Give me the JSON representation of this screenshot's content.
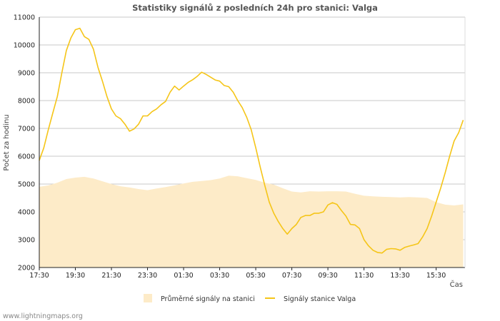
{
  "chart_data": {
    "type": "line",
    "title": "Statistiky signálů z posledních 24h pro stanici: Valga",
    "xlabel": "Čas",
    "ylabel": "Počet za hodinu",
    "ylim": [
      2000,
      11000
    ],
    "yticks": [
      2000,
      3000,
      4000,
      5000,
      6000,
      7000,
      8000,
      9000,
      10000,
      11000
    ],
    "x_tick_labels": [
      "17:30",
      "19:30",
      "21:30",
      "23:30",
      "01:30",
      "03:30",
      "05:30",
      "07:30",
      "09:30",
      "11:30",
      "13:30",
      "15:30"
    ],
    "x_tick_hours": [
      0,
      2,
      4,
      6,
      8,
      10,
      12,
      14,
      16,
      18,
      20,
      22
    ],
    "x_range_hours": [
      0,
      23.6
    ],
    "grid": true,
    "legend_position": "bottom",
    "series": [
      {
        "name": "Průměrné signály na stanici",
        "kind": "area",
        "color": "#fdebc8",
        "x": [
          0,
          0.5,
          1,
          1.5,
          2,
          2.5,
          3,
          3.5,
          4,
          4.5,
          5,
          5.5,
          6,
          6.5,
          7,
          7.5,
          8,
          8.5,
          9,
          9.5,
          10,
          10.5,
          11,
          11.5,
          12,
          12.5,
          13,
          13.5,
          14,
          14.5,
          15,
          15.5,
          16,
          16.5,
          17,
          17.5,
          18,
          18.5,
          19,
          19.5,
          20,
          20.5,
          21,
          21.5,
          22,
          22.5,
          23,
          23.5
        ],
        "values": [
          4900,
          4950,
          5050,
          5180,
          5230,
          5260,
          5200,
          5100,
          5000,
          4920,
          4880,
          4820,
          4780,
          4840,
          4890,
          4950,
          5020,
          5080,
          5110,
          5140,
          5200,
          5300,
          5280,
          5210,
          5150,
          5050,
          4980,
          4850,
          4730,
          4700,
          4740,
          4730,
          4740,
          4740,
          4730,
          4650,
          4580,
          4560,
          4540,
          4530,
          4520,
          4530,
          4520,
          4500,
          4350,
          4260,
          4230,
          4270
        ]
      },
      {
        "name": "Signály stanice Valga",
        "kind": "line",
        "color": "#f5c518",
        "x": [
          0,
          0.25,
          0.5,
          0.75,
          1,
          1.25,
          1.5,
          1.75,
          2,
          2.25,
          2.5,
          2.75,
          3,
          3.25,
          3.5,
          3.75,
          4,
          4.25,
          4.5,
          4.75,
          5,
          5.25,
          5.5,
          5.75,
          6,
          6.25,
          6.5,
          6.75,
          7,
          7.25,
          7.5,
          7.75,
          8,
          8.25,
          8.5,
          8.75,
          9,
          9.25,
          9.5,
          9.75,
          10,
          10.25,
          10.5,
          10.75,
          11,
          11.25,
          11.5,
          11.75,
          12,
          12.25,
          12.5,
          12.75,
          13,
          13.25,
          13.5,
          13.75,
          14,
          14.25,
          14.5,
          14.75,
          15,
          15.25,
          15.5,
          15.75,
          16,
          16.25,
          16.5,
          16.75,
          17,
          17.25,
          17.5,
          17.75,
          18,
          18.25,
          18.5,
          18.75,
          19,
          19.25,
          19.5,
          19.75,
          20,
          20.25,
          20.5,
          20.75,
          21,
          21.25,
          21.5,
          21.75,
          22,
          22.25,
          22.5,
          22.75,
          23,
          23.25,
          23.5
        ],
        "values": [
          5850,
          6300,
          6950,
          7550,
          8150,
          9000,
          9800,
          10250,
          10550,
          10600,
          10300,
          10200,
          9850,
          9200,
          8700,
          8150,
          7700,
          7450,
          7350,
          7150,
          6900,
          6980,
          7150,
          7450,
          7450,
          7600,
          7700,
          7850,
          7970,
          8300,
          8520,
          8380,
          8520,
          8650,
          8750,
          8870,
          9020,
          8940,
          8840,
          8740,
          8700,
          8540,
          8500,
          8300,
          8000,
          7750,
          7400,
          6950,
          6300,
          5600,
          4950,
          4350,
          3950,
          3650,
          3400,
          3200,
          3400,
          3550,
          3800,
          3870,
          3870,
          3950,
          3950,
          4000,
          4250,
          4330,
          4270,
          4050,
          3850,
          3550,
          3530,
          3400,
          3000,
          2780,
          2620,
          2540,
          2520,
          2650,
          2680,
          2670,
          2620,
          2720,
          2770,
          2810,
          2860,
          3100,
          3400,
          3850,
          4350,
          4850,
          5400,
          6000,
          6550,
          6850,
          7300
        ]
      }
    ]
  },
  "footer": {
    "watermark": "www.lightningmaps.org"
  }
}
